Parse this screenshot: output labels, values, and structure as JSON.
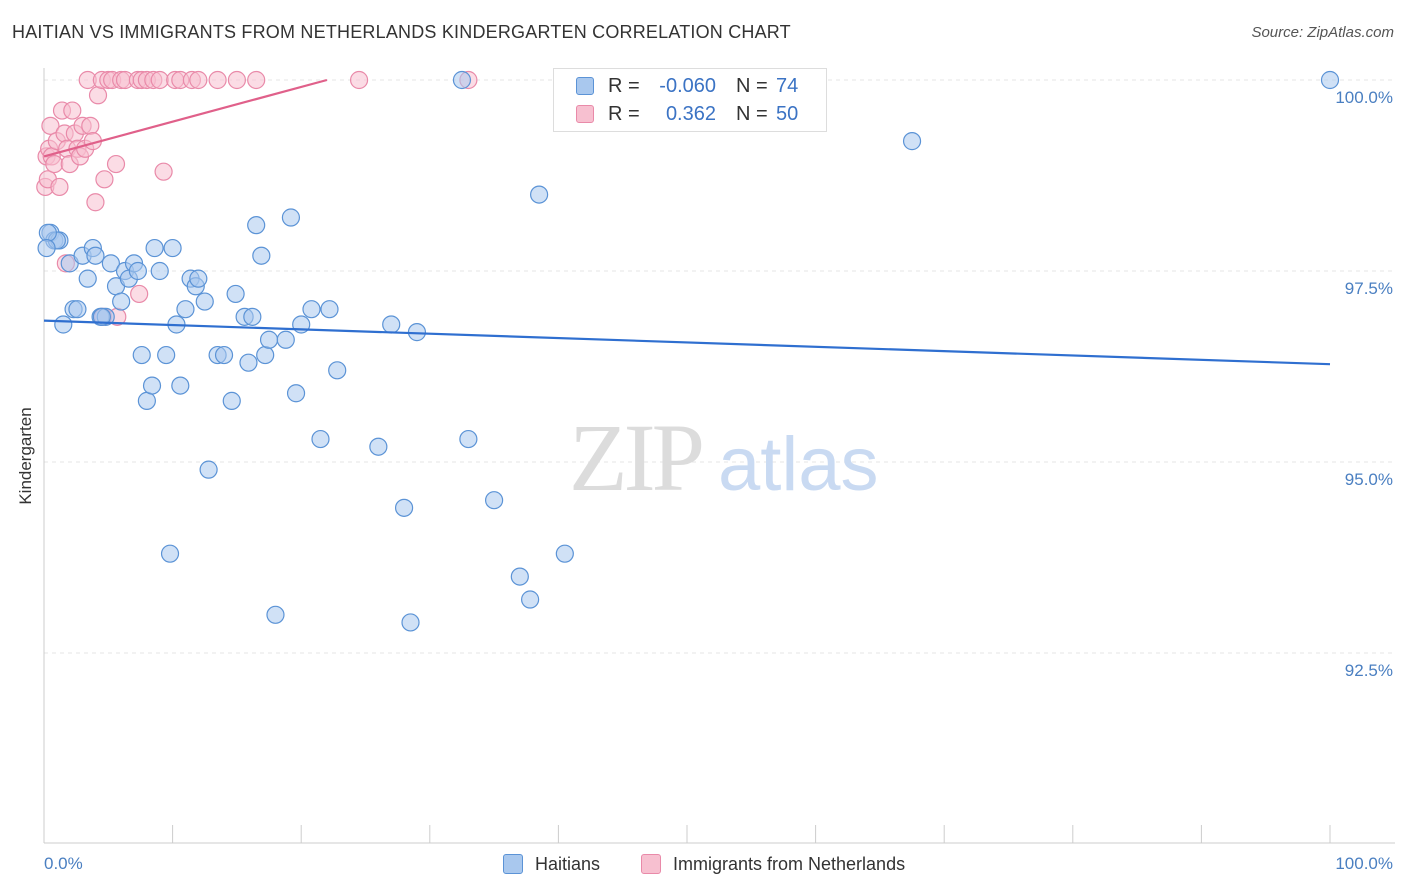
{
  "title": "HAITIAN VS IMMIGRANTS FROM NETHERLANDS KINDERGARTEN CORRELATION CHART",
  "source": "Source: ZipAtlas.com",
  "watermark": {
    "zip": "ZIP",
    "atlas": "atlas"
  },
  "colors": {
    "blue_fill": "#a9c8ee",
    "blue_stroke": "#5b93d6",
    "blue_line": "#2f6fd0",
    "pink_fill": "#f7c0d0",
    "pink_stroke": "#e98aa9",
    "pink_line": "#e0608a",
    "tick_text": "#4a7fc1",
    "grid": "#e6e6e6"
  },
  "legend": {
    "rows": [
      {
        "r_label": "R =",
        "r_value": "-0.060",
        "n_label": "N =",
        "n_value": "74"
      },
      {
        "r_label": "R =",
        "r_value": "0.362",
        "n_label": "N =",
        "n_value": "50"
      }
    ]
  },
  "bottom_legend": {
    "series1": "Haitians",
    "series2": "Immigrants from Netherlands"
  },
  "chart_data": {
    "type": "scatter",
    "title": "HAITIAN VS IMMIGRANTS FROM NETHERLANDS KINDERGARTEN CORRELATION CHART",
    "xlabel": "",
    "ylabel": "Kindergarten",
    "xlim": [
      0,
      100
    ],
    "ylim": [
      90.0,
      100.4
    ],
    "y_ticks": [
      92.5,
      95.0,
      97.5,
      100.0
    ],
    "y_tick_labels": [
      "92.5%",
      "95.0%",
      "97.5%",
      "100.0%"
    ],
    "x_tick_labels": [
      "0.0%",
      "100.0%"
    ],
    "series": [
      {
        "name": "Haitians",
        "r": -0.06,
        "n": 74,
        "trend": {
          "x": [
            0,
            100
          ],
          "y": [
            96.85,
            96.28
          ]
        },
        "points": [
          [
            0.5,
            98.0
          ],
          [
            0.8,
            97.9
          ],
          [
            1.2,
            97.9
          ],
          [
            1.5,
            96.8
          ],
          [
            2.0,
            97.6
          ],
          [
            2.3,
            97.0
          ],
          [
            2.6,
            97.0
          ],
          [
            3.0,
            97.7
          ],
          [
            3.4,
            97.4
          ],
          [
            3.8,
            97.8
          ],
          [
            4.0,
            97.7
          ],
          [
            4.4,
            96.9
          ],
          [
            4.8,
            96.9
          ],
          [
            5.2,
            97.6
          ],
          [
            5.6,
            97.3
          ],
          [
            6.0,
            97.1
          ],
          [
            6.3,
            97.5
          ],
          [
            6.6,
            97.4
          ],
          [
            7.0,
            97.6
          ],
          [
            7.3,
            97.5
          ],
          [
            7.6,
            96.4
          ],
          [
            8.0,
            95.8
          ],
          [
            8.4,
            96.0
          ],
          [
            8.6,
            97.8
          ],
          [
            9.0,
            97.5
          ],
          [
            9.5,
            96.4
          ],
          [
            10.0,
            97.8
          ],
          [
            10.3,
            96.8
          ],
          [
            10.6,
            96.0
          ],
          [
            11.0,
            97.0
          ],
          [
            11.4,
            97.4
          ],
          [
            11.8,
            97.3
          ],
          [
            12.0,
            97.4
          ],
          [
            12.5,
            97.1
          ],
          [
            12.8,
            94.9
          ],
          [
            13.5,
            96.4
          ],
          [
            14.0,
            96.4
          ],
          [
            14.6,
            95.8
          ],
          [
            14.9,
            97.2
          ],
          [
            15.6,
            96.9
          ],
          [
            15.9,
            96.3
          ],
          [
            16.2,
            96.9
          ],
          [
            16.5,
            98.1
          ],
          [
            16.9,
            97.7
          ],
          [
            17.2,
            96.4
          ],
          [
            17.5,
            96.6
          ],
          [
            18.0,
            93.0
          ],
          [
            18.8,
            96.6
          ],
          [
            19.2,
            98.2
          ],
          [
            19.6,
            95.9
          ],
          [
            20.0,
            96.8
          ],
          [
            20.8,
            97.0
          ],
          [
            21.5,
            95.3
          ],
          [
            22.2,
            97.0
          ],
          [
            22.8,
            96.2
          ],
          [
            26.0,
            95.2
          ],
          [
            27.0,
            96.8
          ],
          [
            28.0,
            94.4
          ],
          [
            28.5,
            92.9
          ],
          [
            29.0,
            96.7
          ],
          [
            9.8,
            93.8
          ],
          [
            32.5,
            100.0
          ],
          [
            33.0,
            95.3
          ],
          [
            35.0,
            94.5
          ],
          [
            37.0,
            93.5
          ],
          [
            37.8,
            93.2
          ],
          [
            38.5,
            98.5
          ],
          [
            40.5,
            93.8
          ],
          [
            67.5,
            99.2
          ],
          [
            100.0,
            100.0
          ],
          [
            1.0,
            97.9
          ],
          [
            0.3,
            98.0
          ],
          [
            0.2,
            97.8
          ],
          [
            4.5,
            96.9
          ]
        ]
      },
      {
        "name": "Immigrants from Netherlands",
        "r": 0.362,
        "n": 50,
        "trend": {
          "x": [
            0,
            22
          ],
          "y": [
            99.0,
            100.0
          ]
        },
        "points": [
          [
            0.1,
            98.6
          ],
          [
            0.2,
            99.0
          ],
          [
            0.3,
            98.7
          ],
          [
            0.4,
            99.1
          ],
          [
            0.5,
            99.4
          ],
          [
            0.6,
            99.0
          ],
          [
            0.8,
            98.9
          ],
          [
            1.0,
            99.2
          ],
          [
            1.2,
            98.6
          ],
          [
            1.4,
            99.6
          ],
          [
            1.6,
            99.3
          ],
          [
            1.8,
            99.1
          ],
          [
            2.0,
            98.9
          ],
          [
            2.2,
            99.6
          ],
          [
            2.4,
            99.3
          ],
          [
            2.6,
            99.1
          ],
          [
            2.8,
            99.0
          ],
          [
            3.0,
            99.4
          ],
          [
            3.2,
            99.1
          ],
          [
            3.4,
            100.0
          ],
          [
            3.6,
            99.4
          ],
          [
            3.8,
            99.2
          ],
          [
            4.0,
            98.4
          ],
          [
            4.2,
            99.8
          ],
          [
            4.5,
            100.0
          ],
          [
            4.7,
            98.7
          ],
          [
            5.0,
            100.0
          ],
          [
            5.3,
            100.0
          ],
          [
            5.6,
            98.9
          ],
          [
            6.0,
            100.0
          ],
          [
            6.3,
            100.0
          ],
          [
            7.3,
            100.0
          ],
          [
            7.6,
            100.0
          ],
          [
            8.0,
            100.0
          ],
          [
            8.5,
            100.0
          ],
          [
            9.0,
            100.0
          ],
          [
            9.3,
            98.8
          ],
          [
            10.2,
            100.0
          ],
          [
            10.6,
            100.0
          ],
          [
            11.5,
            100.0
          ],
          [
            12.0,
            100.0
          ],
          [
            13.5,
            100.0
          ],
          [
            15.0,
            100.0
          ],
          [
            16.5,
            100.0
          ],
          [
            24.5,
            100.0
          ],
          [
            33.0,
            100.0
          ],
          [
            1.7,
            97.6
          ],
          [
            4.6,
            96.9
          ],
          [
            7.4,
            97.2
          ],
          [
            5.7,
            96.9
          ]
        ]
      }
    ]
  }
}
